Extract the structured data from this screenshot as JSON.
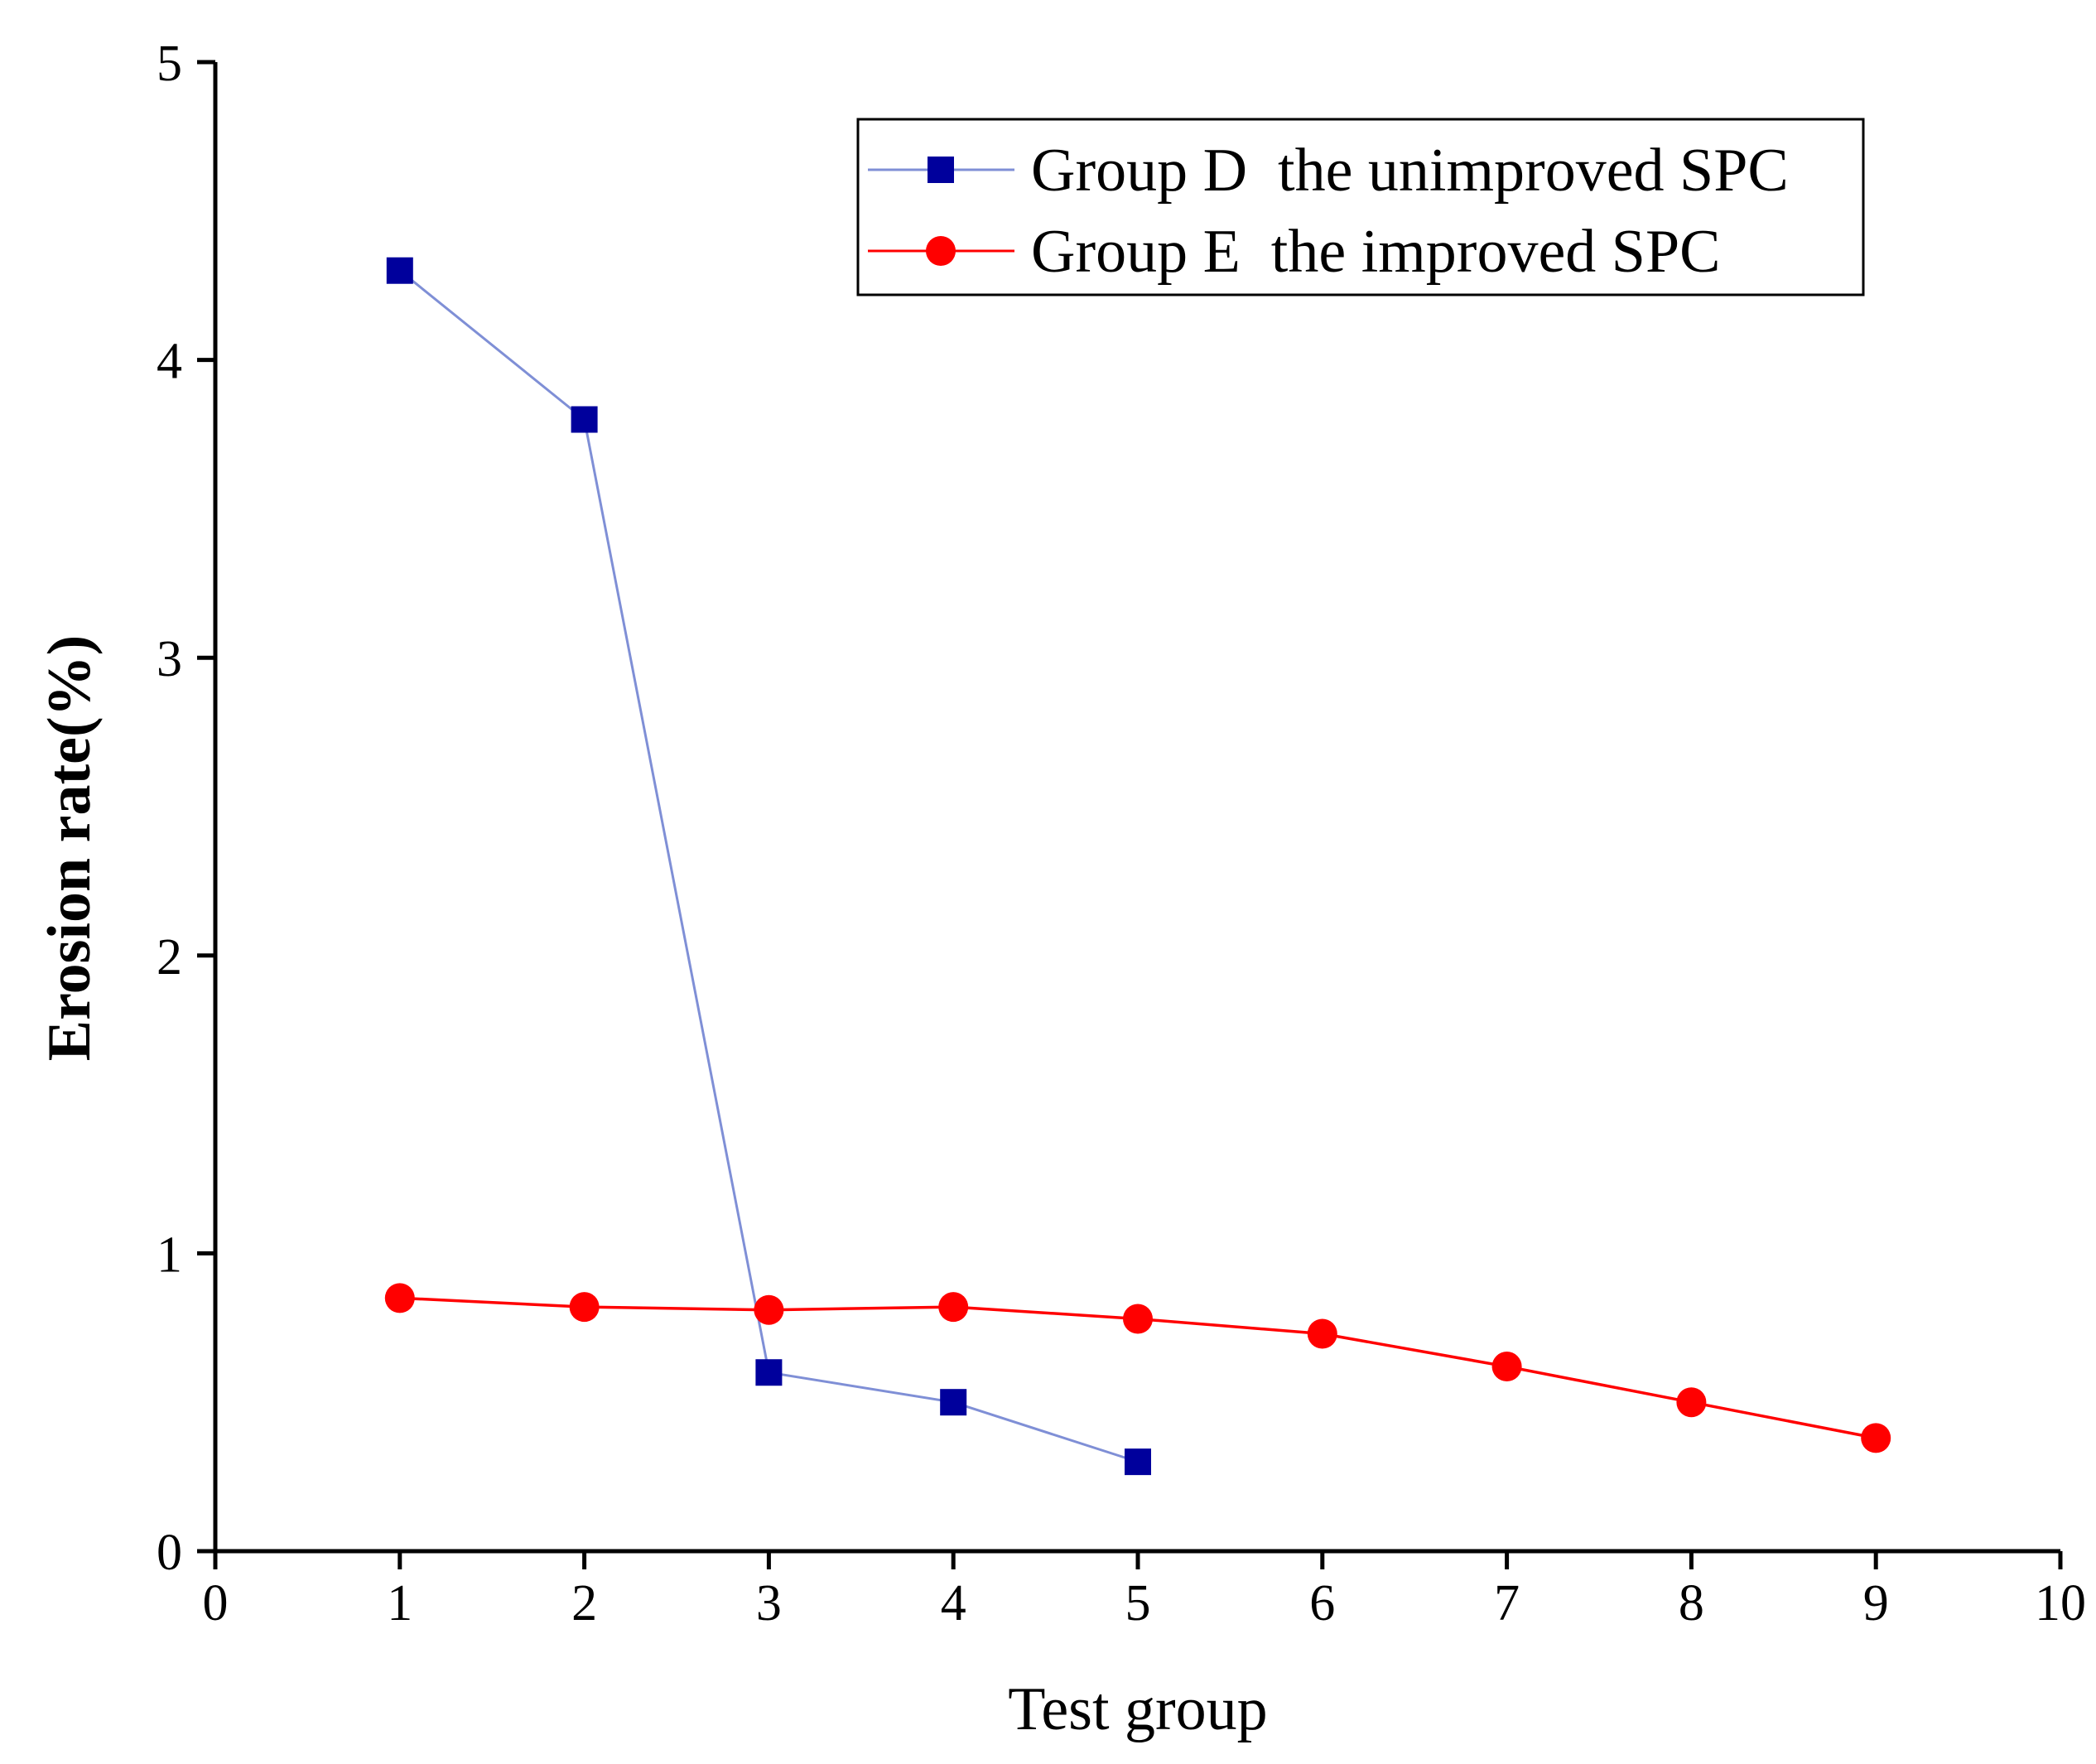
{
  "chart_data": {
    "type": "line",
    "title": "",
    "xlabel": "Test group",
    "ylabel": "Erosion rate(%)",
    "xlim": [
      0,
      10
    ],
    "ylim": [
      0,
      5
    ],
    "xticks": [
      "0",
      "1",
      "2",
      "3",
      "4",
      "5",
      "6",
      "7",
      "8",
      "9",
      "10"
    ],
    "yticks": [
      "0",
      "1",
      "2",
      "3",
      "4",
      "5"
    ],
    "grid": false,
    "legend_position": "top-right",
    "series": [
      {
        "name": "Group D  the unimproved SPC",
        "marker": "square",
        "line_color": "#7f8fd6",
        "marker_color": "#00009c",
        "x": [
          1,
          2,
          3,
          4,
          5
        ],
        "y": [
          4.3,
          3.8,
          0.6,
          0.5,
          0.3
        ]
      },
      {
        "name": "Group E  the improved SPC",
        "marker": "circle",
        "line_color": "#ff0000",
        "marker_color": "#ff0000",
        "x": [
          1,
          2,
          3,
          4,
          5,
          6,
          7,
          8,
          9
        ],
        "y": [
          0.85,
          0.82,
          0.81,
          0.82,
          0.78,
          0.73,
          0.62,
          0.5,
          0.38
        ]
      }
    ]
  }
}
